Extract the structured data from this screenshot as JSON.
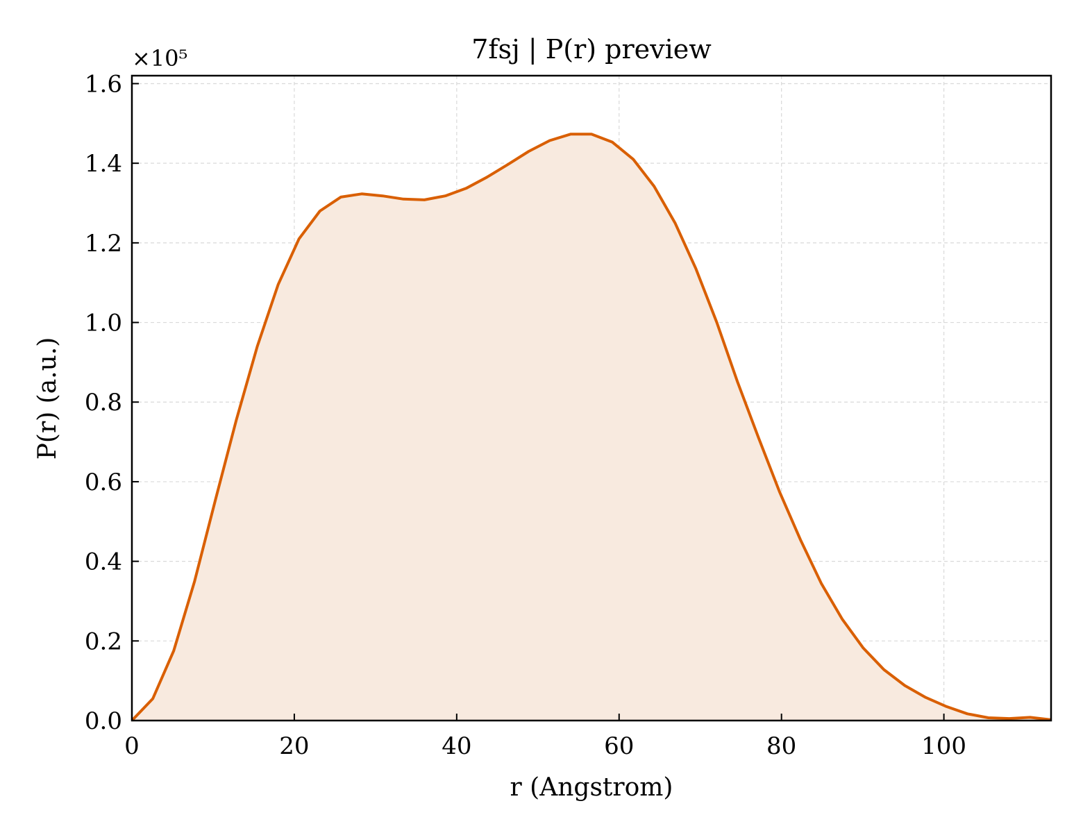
{
  "chart_data": {
    "type": "area",
    "title": "7fsj | P(r) preview",
    "xlabel": "r (Angstrom)",
    "ylabel": "P(r) (a.u.)",
    "y_multiplier_label": "×10⁵",
    "xlim": [
      0,
      113.2
    ],
    "ylim": [
      0,
      1.62
    ],
    "xticks": [
      0,
      20,
      40,
      60,
      80,
      100
    ],
    "yticks": [
      0.0,
      0.2,
      0.4,
      0.6,
      0.8,
      1.0,
      1.2,
      1.4,
      1.6
    ],
    "grid": true,
    "line_color": "#d95f02",
    "fill_color": "#f8eadf",
    "x": [
      0,
      2.57,
      5.15,
      7.72,
      10.29,
      12.86,
      15.44,
      18.01,
      20.58,
      23.15,
      25.73,
      28.3,
      30.87,
      33.44,
      36.02,
      38.59,
      41.16,
      43.73,
      46.31,
      48.88,
      51.45,
      54.02,
      56.6,
      59.17,
      61.74,
      64.31,
      66.89,
      69.46,
      72.03,
      74.6,
      77.18,
      79.75,
      82.32,
      84.89,
      87.47,
      90.04,
      92.61,
      95.18,
      97.76,
      100.33,
      102.9,
      105.47,
      108.05,
      110.62,
      113.2
    ],
    "y": [
      0.0,
      0.055,
      0.175,
      0.35,
      0.555,
      0.755,
      0.94,
      1.095,
      1.21,
      1.28,
      1.315,
      1.323,
      1.318,
      1.31,
      1.308,
      1.318,
      1.337,
      1.365,
      1.397,
      1.43,
      1.457,
      1.473,
      1.473,
      1.453,
      1.41,
      1.342,
      1.25,
      1.135,
      1.0,
      0.85,
      0.71,
      0.575,
      0.455,
      0.345,
      0.255,
      0.183,
      0.128,
      0.088,
      0.058,
      0.035,
      0.017,
      0.007,
      0.005,
      0.008,
      0.002
    ]
  }
}
